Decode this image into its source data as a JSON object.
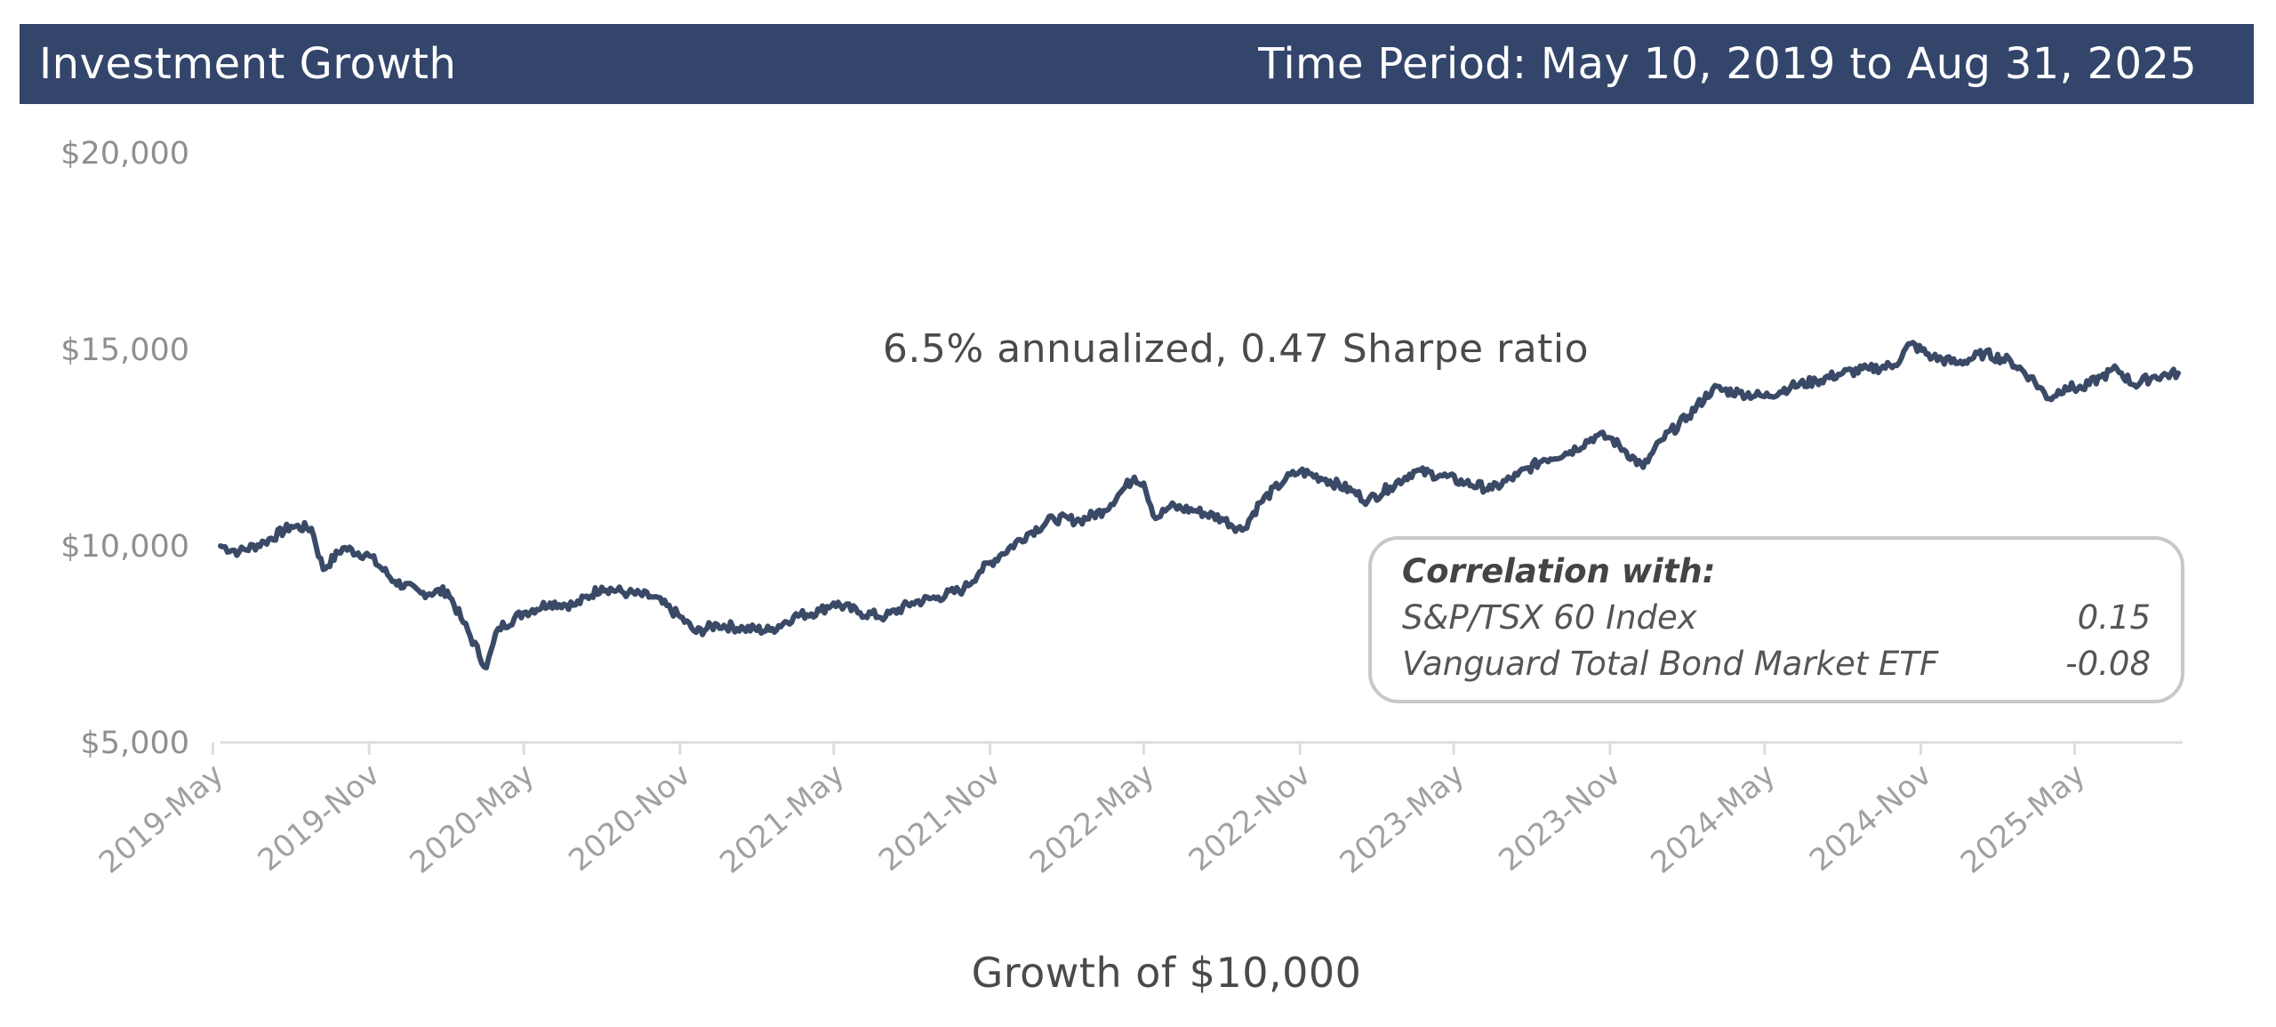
{
  "header": {
    "title": "Investment Growth",
    "time_period": "Time Period: May 10, 2019 to Aug 31, 2025"
  },
  "colors": {
    "header_bg": "#33456b",
    "line": "#3a4a66",
    "box_border": "#c8c8c8"
  },
  "correlation": {
    "title": "Correlation with:",
    "rows": [
      {
        "name": "S&P/TSX 60 Index",
        "value": "0.15"
      },
      {
        "name": "Vanguard Total Bond Market ETF",
        "value": "-0.08"
      }
    ]
  },
  "chart_data": {
    "type": "line",
    "title": "Investment Growth",
    "subtitle": "6.5% annualized, 0.47 Sharpe ratio",
    "xlabel": "Growth of $10,000",
    "ylabel": "",
    "ylim": [
      5000,
      20000
    ],
    "yticks": [
      {
        "value": 5000,
        "label": "$5,000"
      },
      {
        "value": 10000,
        "label": "$10,000"
      },
      {
        "value": 15000,
        "label": "$15,000"
      },
      {
        "value": 20000,
        "label": "$20,000"
      }
    ],
    "xlim": [
      "2019-05-10",
      "2025-08-31"
    ],
    "xticks": [
      {
        "date": "2019-05-01",
        "label": "2019-May"
      },
      {
        "date": "2019-11-01",
        "label": "2019-Nov"
      },
      {
        "date": "2020-05-01",
        "label": "2020-May"
      },
      {
        "date": "2020-11-01",
        "label": "2020-Nov"
      },
      {
        "date": "2021-05-01",
        "label": "2021-May"
      },
      {
        "date": "2021-11-01",
        "label": "2021-Nov"
      },
      {
        "date": "2022-05-01",
        "label": "2022-May"
      },
      {
        "date": "2022-11-01",
        "label": "2022-Nov"
      },
      {
        "date": "2023-05-01",
        "label": "2023-May"
      },
      {
        "date": "2023-11-01",
        "label": "2023-Nov"
      },
      {
        "date": "2024-05-01",
        "label": "2024-May"
      },
      {
        "date": "2024-11-01",
        "label": "2024-Nov"
      },
      {
        "date": "2025-05-01",
        "label": "2025-May"
      }
    ],
    "grid": false,
    "legend": "none",
    "series": [
      {
        "points": [
          [
            "2019-05-10",
            10000
          ],
          [
            "2019-06-01",
            9850
          ],
          [
            "2019-07-01",
            10100
          ],
          [
            "2019-08-01",
            10500
          ],
          [
            "2019-08-25",
            10450
          ],
          [
            "2019-09-08",
            9400
          ],
          [
            "2019-10-01",
            9950
          ],
          [
            "2019-11-01",
            9750
          ],
          [
            "2019-12-01",
            9100
          ],
          [
            "2020-01-01",
            8800
          ],
          [
            "2020-02-01",
            8850
          ],
          [
            "2020-02-20",
            8050
          ],
          [
            "2020-03-18",
            6900
          ],
          [
            "2020-04-01",
            7900
          ],
          [
            "2020-05-01",
            8300
          ],
          [
            "2020-06-01",
            8550
          ],
          [
            "2020-07-01",
            8500
          ],
          [
            "2020-08-01",
            8950
          ],
          [
            "2020-09-01",
            8800
          ],
          [
            "2020-10-01",
            8700
          ],
          [
            "2020-11-01",
            8200
          ],
          [
            "2020-11-20",
            7800
          ],
          [
            "2020-12-15",
            8000
          ],
          [
            "2021-01-15",
            7900
          ],
          [
            "2021-02-15",
            7850
          ],
          [
            "2021-03-15",
            8200
          ],
          [
            "2021-04-15",
            8350
          ],
          [
            "2021-05-01",
            8550
          ],
          [
            "2021-06-01",
            8300
          ],
          [
            "2021-07-01",
            8200
          ],
          [
            "2021-08-01",
            8550
          ],
          [
            "2021-09-01",
            8700
          ],
          [
            "2021-10-01",
            8900
          ],
          [
            "2021-10-20",
            9350
          ],
          [
            "2021-11-15",
            9800
          ],
          [
            "2021-12-15",
            10300
          ],
          [
            "2022-01-15",
            10700
          ],
          [
            "2022-02-15",
            10650
          ],
          [
            "2022-03-15",
            10900
          ],
          [
            "2022-04-01",
            11300
          ],
          [
            "2022-04-20",
            11750
          ],
          [
            "2022-05-01",
            11600
          ],
          [
            "2022-05-15",
            10700
          ],
          [
            "2022-06-01",
            11000
          ],
          [
            "2022-07-01",
            10900
          ],
          [
            "2022-08-01",
            10700
          ],
          [
            "2022-08-25",
            10400
          ],
          [
            "2022-09-15",
            11100
          ],
          [
            "2022-10-15",
            11700
          ],
          [
            "2022-11-01",
            11900
          ],
          [
            "2022-12-01",
            11700
          ],
          [
            "2023-01-01",
            11400
          ],
          [
            "2023-01-20",
            11150
          ],
          [
            "2023-02-15",
            11500
          ],
          [
            "2023-03-15",
            11900
          ],
          [
            "2023-04-15",
            11800
          ],
          [
            "2023-05-15",
            11600
          ],
          [
            "2023-06-15",
            11450
          ],
          [
            "2023-07-15",
            11800
          ],
          [
            "2023-08-15",
            12200
          ],
          [
            "2023-09-15",
            12400
          ],
          [
            "2023-10-15",
            12800
          ],
          [
            "2023-11-01",
            12750
          ],
          [
            "2023-11-20",
            12400
          ],
          [
            "2023-12-10",
            12000
          ],
          [
            "2024-01-01",
            12700
          ],
          [
            "2024-02-01",
            13300
          ],
          [
            "2024-03-01",
            14000
          ],
          [
            "2024-04-01",
            13900
          ],
          [
            "2024-05-01",
            13800
          ],
          [
            "2024-06-01",
            14050
          ],
          [
            "2024-07-01",
            14200
          ],
          [
            "2024-08-01",
            14400
          ],
          [
            "2024-09-01",
            14500
          ],
          [
            "2024-10-01",
            14600
          ],
          [
            "2024-10-20",
            15150
          ],
          [
            "2024-11-15",
            14800
          ],
          [
            "2024-12-15",
            14650
          ],
          [
            "2025-01-15",
            14900
          ],
          [
            "2025-02-15",
            14700
          ],
          [
            "2025-03-10",
            14300
          ],
          [
            "2025-04-01",
            13750
          ],
          [
            "2025-04-20",
            14050
          ],
          [
            "2025-05-10",
            14000
          ],
          [
            "2025-06-01",
            14300
          ],
          [
            "2025-06-20",
            14500
          ],
          [
            "2025-07-10",
            14100
          ],
          [
            "2025-08-01",
            14300
          ],
          [
            "2025-08-31",
            14400
          ]
        ]
      }
    ]
  }
}
